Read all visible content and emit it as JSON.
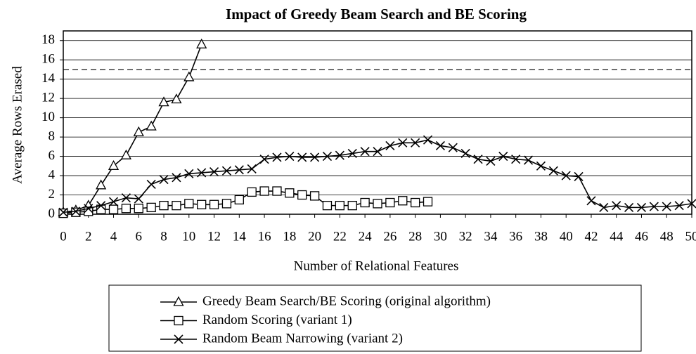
{
  "chart_data": {
    "type": "line",
    "title": "Impact of Greedy Beam Search and BE Scoring",
    "x_label": "Number of Relational Features",
    "y_label": "Average Rows Erased",
    "xlim": [
      0,
      50
    ],
    "ylim": [
      0,
      19
    ],
    "xticks": [
      0,
      2,
      4,
      6,
      8,
      10,
      12,
      14,
      16,
      18,
      20,
      22,
      24,
      26,
      28,
      30,
      32,
      34,
      36,
      38,
      40,
      42,
      44,
      46,
      48,
      50
    ],
    "yticks": [
      0,
      2,
      4,
      6,
      8,
      10,
      12,
      14,
      16,
      18
    ],
    "grid": true,
    "reference_line": 15,
    "legend": "bottom",
    "series": [
      {
        "name": "Greedy Beam Search/BE Scoring (original algorithm)",
        "color": "#000000",
        "marker": "triangle",
        "x": [
          0,
          1,
          2,
          3,
          4,
          5,
          6,
          7,
          8,
          9,
          10,
          11
        ],
        "values": [
          0.2,
          0.4,
          0.9,
          3.0,
          5.0,
          6.1,
          8.5,
          9.1,
          11.6,
          11.9,
          14.2,
          17.6
        ]
      },
      {
        "name": "Random Scoring (variant 1)",
        "color": "#000000",
        "marker": "square",
        "x": [
          0,
          1,
          2,
          3,
          4,
          5,
          6,
          7,
          8,
          9,
          10,
          11,
          12,
          13,
          14,
          15,
          16,
          17,
          18,
          19,
          20,
          21,
          22,
          23,
          24,
          25,
          26,
          27,
          28,
          29
        ],
        "values": [
          0.1,
          0.2,
          0.3,
          0.5,
          0.5,
          0.6,
          0.6,
          0.7,
          0.9,
          0.9,
          1.1,
          1.0,
          1.0,
          1.1,
          1.5,
          2.3,
          2.4,
          2.4,
          2.2,
          2.0,
          1.9,
          0.9,
          0.9,
          0.9,
          1.2,
          1.1,
          1.2,
          1.4,
          1.2,
          1.3
        ]
      },
      {
        "name": "Random Beam Narrowing (variant 2)",
        "color": "#000000",
        "marker": "x",
        "x": [
          0,
          1,
          2,
          3,
          4,
          5,
          6,
          7,
          8,
          9,
          10,
          11,
          12,
          13,
          14,
          15,
          16,
          17,
          18,
          19,
          20,
          21,
          22,
          23,
          24,
          25,
          26,
          27,
          28,
          29,
          30,
          31,
          32,
          33,
          34,
          35,
          36,
          37,
          38,
          39,
          40,
          41,
          42,
          43,
          44,
          45,
          46,
          47,
          48,
          49,
          50
        ],
        "values": [
          0.2,
          0.3,
          0.6,
          0.9,
          1.3,
          1.7,
          1.6,
          3.1,
          3.6,
          3.8,
          4.2,
          4.3,
          4.4,
          4.5,
          4.6,
          4.7,
          5.7,
          5.9,
          6.0,
          5.9,
          5.9,
          6.0,
          6.1,
          6.3,
          6.5,
          6.5,
          7.1,
          7.4,
          7.4,
          7.7,
          7.1,
          6.9,
          6.3,
          5.7,
          5.5,
          6.0,
          5.7,
          5.6,
          5.0,
          4.5,
          4.0,
          3.9,
          1.4,
          0.7,
          0.9,
          0.7,
          0.7,
          0.8,
          0.8,
          0.9,
          1.1
        ]
      }
    ]
  }
}
